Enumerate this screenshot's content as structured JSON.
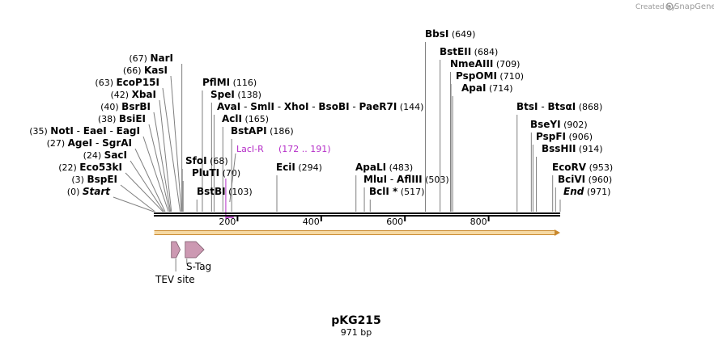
{
  "credit": {
    "created_by": "Created by",
    "brand": "SnapGene"
  },
  "plasmid": {
    "name": "pKG215",
    "length_label": "971 bp",
    "length_bp": 971
  },
  "axis": {
    "ticks": [
      {
        "bp": 200,
        "label": "200"
      },
      {
        "bp": 400,
        "label": "400"
      },
      {
        "bp": 600,
        "label": "600"
      },
      {
        "bp": 800,
        "label": "800"
      }
    ]
  },
  "enzymes": [
    {
      "names": [
        "Start"
      ],
      "pos": 0,
      "pos_label": "(0)",
      "italic": true
    },
    {
      "names": [
        "BspEI"
      ],
      "pos": 3,
      "pos_label": "(3)"
    },
    {
      "names": [
        "Eco53kI"
      ],
      "pos": 22,
      "pos_label": "(22)"
    },
    {
      "names": [
        "SacI"
      ],
      "pos": 24,
      "pos_label": "(24)"
    },
    {
      "names": [
        "AgeI",
        "SgrAI"
      ],
      "pos": 27,
      "pos_label": "(27)"
    },
    {
      "names": [
        "NotI",
        "EaeI",
        "EagI"
      ],
      "pos": 35,
      "pos_label": "(35)"
    },
    {
      "names": [
        "BsiEI"
      ],
      "pos": 38,
      "pos_label": "(38)"
    },
    {
      "names": [
        "BsrBI"
      ],
      "pos": 40,
      "pos_label": "(40)"
    },
    {
      "names": [
        "XbaI"
      ],
      "pos": 42,
      "pos_label": "(42)"
    },
    {
      "names": [
        "EcoP15I"
      ],
      "pos": 63,
      "pos_label": "(63)"
    },
    {
      "names": [
        "KasI"
      ],
      "pos": 66,
      "pos_label": "(66)"
    },
    {
      "names": [
        "NarI"
      ],
      "pos": 67,
      "pos_label": "(67)"
    },
    {
      "names": [
        "SfoI"
      ],
      "pos": 68,
      "pos_label": "(68)"
    },
    {
      "names": [
        "PluTI"
      ],
      "pos": 70,
      "pos_label": "(70)"
    },
    {
      "names": [
        "BstBI"
      ],
      "pos": 103,
      "pos_label": "(103)"
    },
    {
      "names": [
        "PflMI"
      ],
      "pos": 116,
      "pos_label": "(116)"
    },
    {
      "names": [
        "SpeI"
      ],
      "pos": 138,
      "pos_label": "(138)"
    },
    {
      "names": [
        "AvaI",
        "SmlI",
        "XhoI",
        "BsoBI",
        "PaeR7I"
      ],
      "pos": 144,
      "pos_label": "(144)"
    },
    {
      "names": [
        "AclI"
      ],
      "pos": 165,
      "pos_label": "(165)"
    },
    {
      "names": [
        "BstAPI"
      ],
      "pos": 186,
      "pos_label": "(186)"
    },
    {
      "names": [
        "EciI"
      ],
      "pos": 294,
      "pos_label": "(294)"
    },
    {
      "names": [
        "ApaLI"
      ],
      "pos": 483,
      "pos_label": "(483)"
    },
    {
      "names": [
        "MluI",
        "AflIII"
      ],
      "pos": 503,
      "pos_label": "(503)"
    },
    {
      "names": [
        "BclI *"
      ],
      "pos": 517,
      "pos_label": "(517)"
    },
    {
      "names": [
        "BbsI"
      ],
      "pos": 649,
      "pos_label": "(649)"
    },
    {
      "names": [
        "BstEII"
      ],
      "pos": 684,
      "pos_label": "(684)"
    },
    {
      "names": [
        "NmeAIII"
      ],
      "pos": 709,
      "pos_label": "(709)"
    },
    {
      "names": [
        "PspOMI"
      ],
      "pos": 710,
      "pos_label": "(710)"
    },
    {
      "names": [
        "ApaI"
      ],
      "pos": 714,
      "pos_label": "(714)"
    },
    {
      "names": [
        "BtsI",
        "BtsαI"
      ],
      "pos": 868,
      "pos_label": "(868)"
    },
    {
      "names": [
        "BseYI"
      ],
      "pos": 902,
      "pos_label": "(902)"
    },
    {
      "names": [
        "PspFI"
      ],
      "pos": 906,
      "pos_label": "(906)"
    },
    {
      "names": [
        "BssHII"
      ],
      "pos": 914,
      "pos_label": "(914)"
    },
    {
      "names": [
        "EcoRV"
      ],
      "pos": 953,
      "pos_label": "(953)"
    },
    {
      "names": [
        "BciVI"
      ],
      "pos": 960,
      "pos_label": "(960)"
    },
    {
      "names": [
        "End"
      ],
      "pos": 971,
      "pos_label": "(971)",
      "italic": true
    }
  ],
  "primer": {
    "name": "LacI-R",
    "range_label": "(172 .. 191)",
    "start": 172,
    "end": 191,
    "color": "#b52ec8"
  },
  "orf": {
    "start": 1,
    "end": 971,
    "fill": "#f6d9a3",
    "stroke": "#c9892e"
  },
  "features": [
    {
      "name": "TEV site",
      "start": 42,
      "end": 63,
      "color": "#cc99b2"
    },
    {
      "name": "S-Tag",
      "start": 75,
      "end": 120,
      "color": "#cc99b2"
    }
  ]
}
